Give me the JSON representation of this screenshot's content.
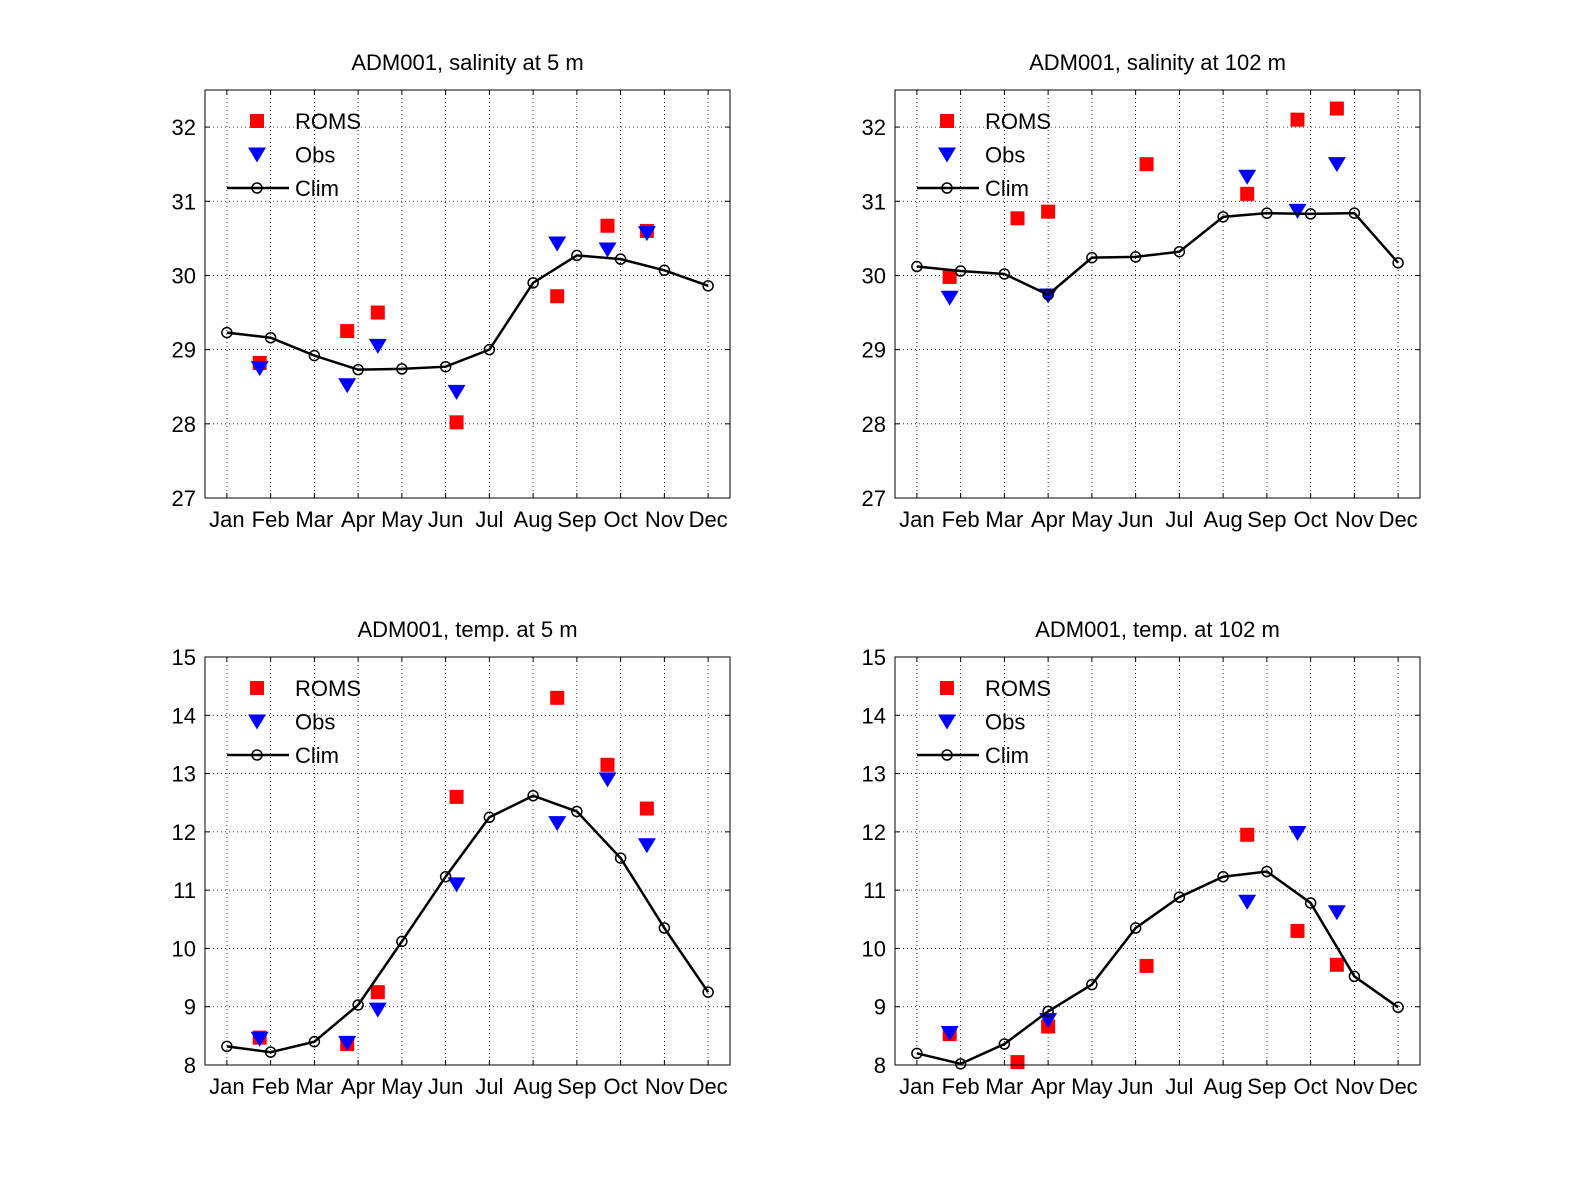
{
  "chart_data": [
    {
      "type": "line",
      "title": "ADM001, salinity at 5 m",
      "categories": [
        "Jan",
        "Feb",
        "Mar",
        "Apr",
        "May",
        "Jun",
        "Jul",
        "Aug",
        "Sep",
        "Oct",
        "Nov",
        "Dec"
      ],
      "xlim": [
        0.5,
        12.5
      ],
      "ylim": [
        27,
        32.5
      ],
      "yticks": [
        27,
        28,
        29,
        30,
        31,
        32
      ],
      "grid": true,
      "legend_position": "top-left",
      "series": [
        {
          "name": "ROMS",
          "marker": "square",
          "color": "#ff0000",
          "points": [
            [
              1.75,
              28.82
            ],
            [
              3.75,
              29.25
            ],
            [
              4.45,
              29.5
            ],
            [
              6.25,
              28.02
            ],
            [
              8.55,
              29.72
            ],
            [
              9.7,
              30.67
            ],
            [
              10.6,
              30.6
            ]
          ]
        },
        {
          "name": "Obs",
          "marker": "triangle-down",
          "color": "#0000ff",
          "points": [
            [
              1.75,
              28.75
            ],
            [
              3.75,
              28.52
            ],
            [
              4.45,
              29.05
            ],
            [
              6.25,
              28.43
            ],
            [
              8.55,
              30.43
            ],
            [
              9.7,
              30.35
            ],
            [
              10.6,
              30.57
            ]
          ]
        },
        {
          "name": "Clim",
          "marker": "circle-line",
          "color": "#000000",
          "points": [
            [
              1,
              29.23
            ],
            [
              2,
              29.16
            ],
            [
              3,
              28.92
            ],
            [
              4,
              28.73
            ],
            [
              5,
              28.74
            ],
            [
              6,
              28.77
            ],
            [
              7,
              29.0
            ],
            [
              8,
              29.9
            ],
            [
              9,
              30.27
            ],
            [
              10,
              30.22
            ],
            [
              11,
              30.07
            ],
            [
              12,
              29.86
            ]
          ]
        }
      ]
    },
    {
      "type": "line",
      "title": "ADM001, salinity at 102 m",
      "categories": [
        "Jan",
        "Feb",
        "Mar",
        "Apr",
        "May",
        "Jun",
        "Jul",
        "Aug",
        "Sep",
        "Oct",
        "Nov",
        "Dec"
      ],
      "xlim": [
        0.5,
        12.5
      ],
      "ylim": [
        27,
        32.5
      ],
      "yticks": [
        27,
        28,
        29,
        30,
        31,
        32
      ],
      "grid": true,
      "legend_position": "top-left",
      "series": [
        {
          "name": "ROMS",
          "marker": "square",
          "color": "#ff0000",
          "points": [
            [
              1.75,
              29.98
            ],
            [
              3.3,
              30.77
            ],
            [
              4.0,
              30.86
            ],
            [
              6.25,
              31.5
            ],
            [
              8.55,
              31.1
            ],
            [
              9.7,
              32.1
            ],
            [
              10.6,
              32.25
            ]
          ]
        },
        {
          "name": "Obs",
          "marker": "triangle-down",
          "color": "#0000ff",
          "points": [
            [
              1.75,
              29.7
            ],
            [
              4.0,
              29.73
            ],
            [
              8.55,
              31.33
            ],
            [
              9.7,
              30.87
            ],
            [
              10.6,
              31.5
            ]
          ]
        },
        {
          "name": "Clim",
          "marker": "circle-line",
          "color": "#000000",
          "points": [
            [
              1,
              30.12
            ],
            [
              2,
              30.06
            ],
            [
              3,
              30.02
            ],
            [
              4,
              29.74
            ],
            [
              5,
              30.24
            ],
            [
              6,
              30.25
            ],
            [
              7,
              30.32
            ],
            [
              8,
              30.79
            ],
            [
              9,
              30.84
            ],
            [
              10,
              30.83
            ],
            [
              11,
              30.84
            ],
            [
              12,
              30.17
            ]
          ]
        }
      ]
    },
    {
      "type": "line",
      "title": "ADM001, temp. at 5 m",
      "categories": [
        "Jan",
        "Feb",
        "Mar",
        "Apr",
        "May",
        "Jun",
        "Jul",
        "Aug",
        "Sep",
        "Oct",
        "Nov",
        "Dec"
      ],
      "xlim": [
        0.5,
        12.5
      ],
      "ylim": [
        8,
        15
      ],
      "yticks": [
        8,
        9,
        10,
        11,
        12,
        13,
        14,
        15
      ],
      "grid": true,
      "legend_position": "top-left",
      "series": [
        {
          "name": "ROMS",
          "marker": "square",
          "color": "#ff0000",
          "points": [
            [
              1.75,
              8.47
            ],
            [
              3.75,
              8.36
            ],
            [
              4.45,
              9.25
            ],
            [
              6.25,
              12.6
            ],
            [
              8.55,
              14.3
            ],
            [
              9.7,
              13.15
            ],
            [
              10.6,
              12.4
            ]
          ]
        },
        {
          "name": "Obs",
          "marker": "triangle-down",
          "color": "#0000ff",
          "points": [
            [
              1.75,
              8.45
            ],
            [
              3.75,
              8.38
            ],
            [
              4.45,
              8.95
            ],
            [
              6.25,
              11.1
            ],
            [
              8.55,
              12.15
            ],
            [
              9.7,
              12.9
            ],
            [
              10.6,
              11.77
            ]
          ]
        },
        {
          "name": "Clim",
          "marker": "circle-line",
          "color": "#000000",
          "points": [
            [
              1,
              8.32
            ],
            [
              2,
              8.22
            ],
            [
              3,
              8.4
            ],
            [
              4,
              9.03
            ],
            [
              5,
              10.12
            ],
            [
              6,
              11.23
            ],
            [
              7,
              12.25
            ],
            [
              8,
              12.62
            ],
            [
              9,
              12.35
            ],
            [
              10,
              11.55
            ],
            [
              11,
              10.35
            ],
            [
              12,
              9.25
            ]
          ]
        }
      ]
    },
    {
      "type": "line",
      "title": "ADM001, temp. at 102 m",
      "categories": [
        "Jan",
        "Feb",
        "Mar",
        "Apr",
        "May",
        "Jun",
        "Jul",
        "Aug",
        "Sep",
        "Oct",
        "Nov",
        "Dec"
      ],
      "xlim": [
        0.5,
        12.5
      ],
      "ylim": [
        8,
        15
      ],
      "yticks": [
        8,
        9,
        10,
        11,
        12,
        13,
        14,
        15
      ],
      "grid": true,
      "legend_position": "top-left",
      "series": [
        {
          "name": "ROMS",
          "marker": "square",
          "color": "#ff0000",
          "points": [
            [
              1.75,
              8.53
            ],
            [
              3.3,
              8.05
            ],
            [
              4.0,
              8.66
            ],
            [
              6.25,
              9.7
            ],
            [
              8.55,
              11.95
            ],
            [
              9.7,
              10.3
            ],
            [
              10.6,
              9.72
            ]
          ]
        },
        {
          "name": "Obs",
          "marker": "triangle-down",
          "color": "#0000ff",
          "points": [
            [
              1.75,
              8.55
            ],
            [
              4.0,
              8.77
            ],
            [
              8.55,
              10.8
            ],
            [
              9.7,
              11.98
            ],
            [
              10.6,
              10.62
            ]
          ]
        },
        {
          "name": "Clim",
          "marker": "circle-line",
          "color": "#000000",
          "points": [
            [
              1,
              8.2
            ],
            [
              2,
              8.02
            ],
            [
              3,
              8.36
            ],
            [
              4,
              8.92
            ],
            [
              5,
              9.38
            ],
            [
              6,
              10.35
            ],
            [
              7,
              10.88
            ],
            [
              8,
              11.23
            ],
            [
              9,
              11.32
            ],
            [
              10,
              10.78
            ],
            [
              11,
              9.52
            ],
            [
              12,
              8.99
            ]
          ]
        }
      ]
    }
  ]
}
